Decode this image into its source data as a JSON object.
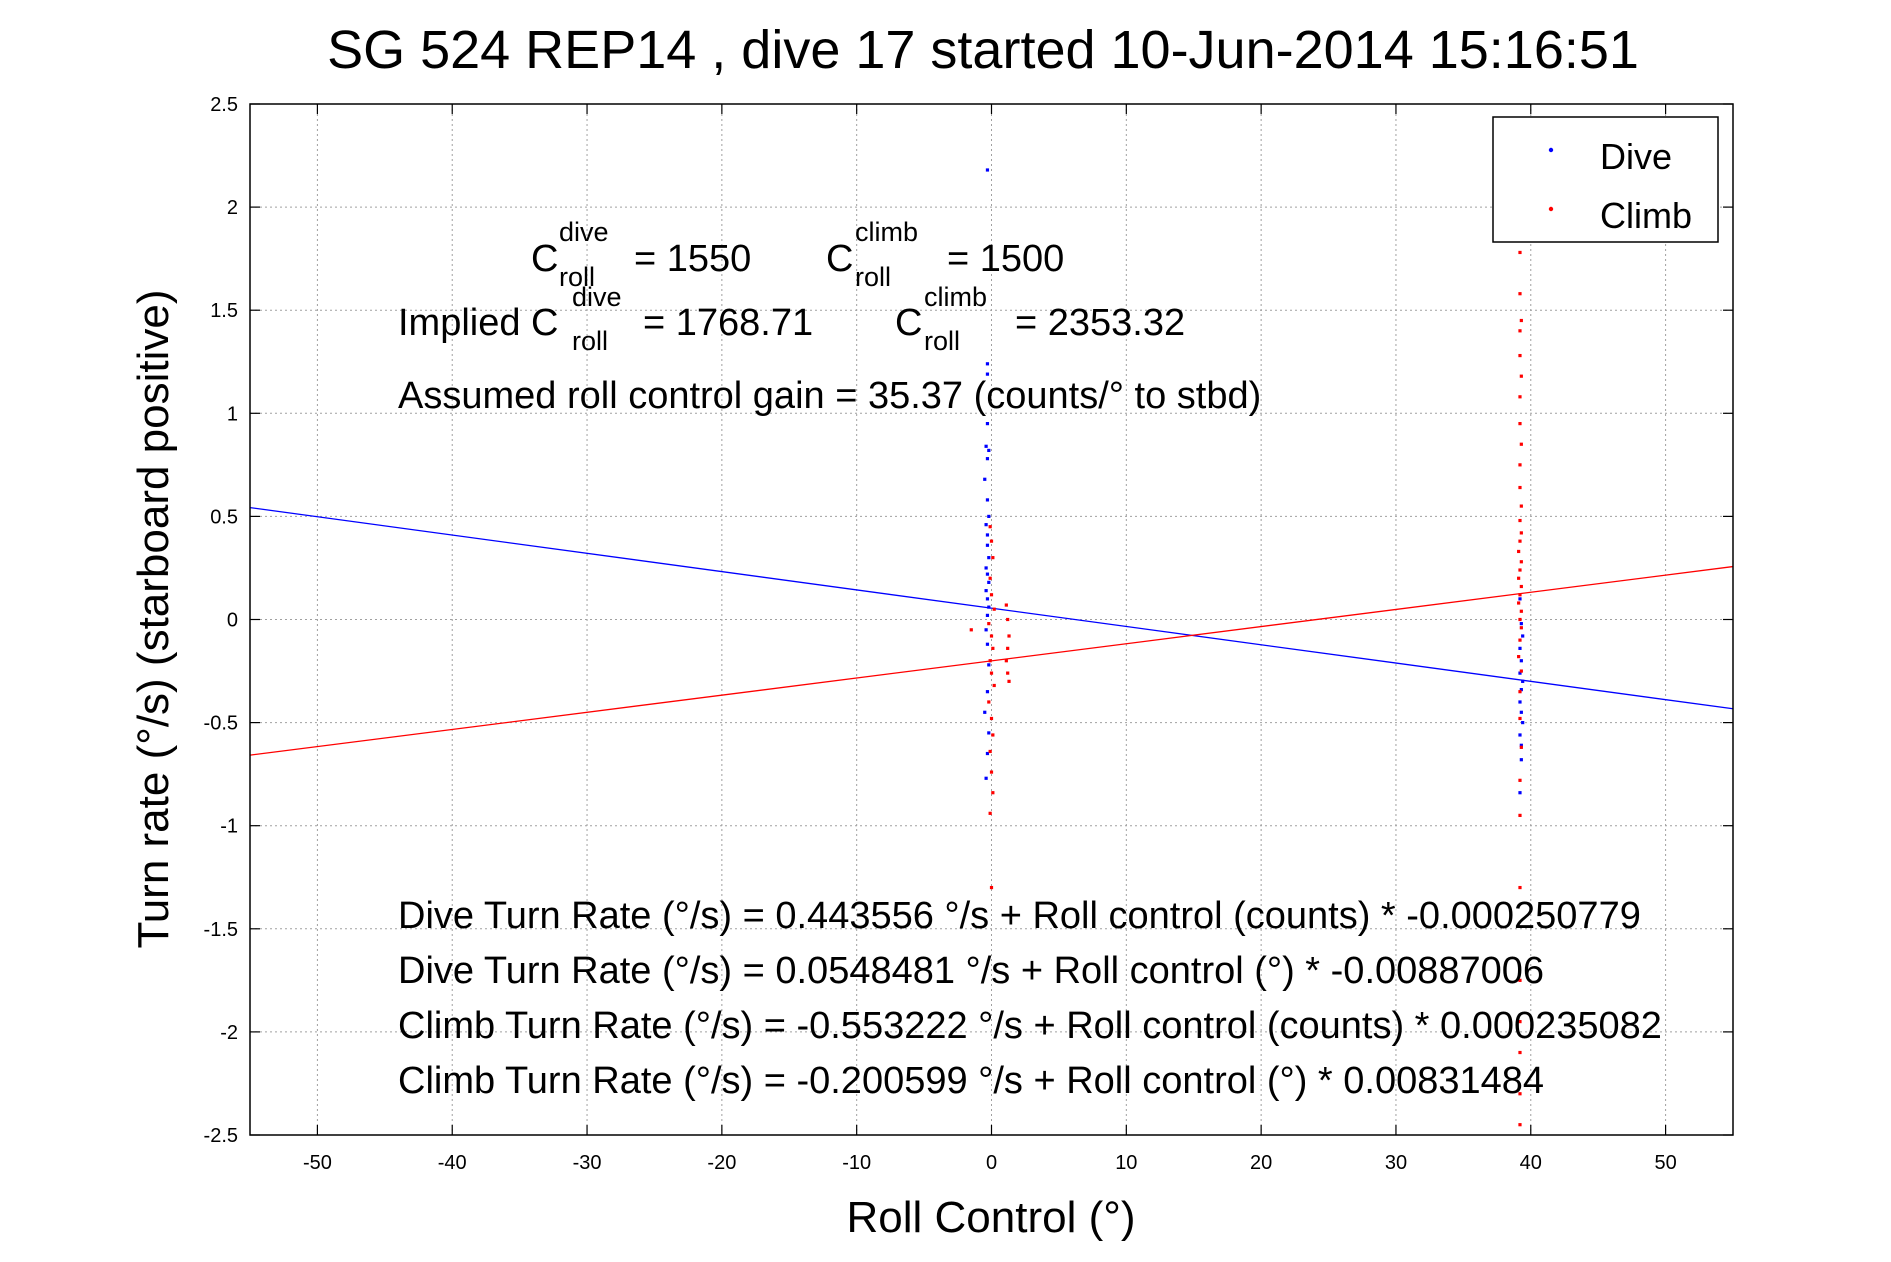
{
  "chart_data": {
    "type": "scatter",
    "title": "SG 524   REP14  , dive 17 started 10-Jun-2014 15:16:51",
    "xlabel": "Roll Control (°)",
    "ylabel": "Turn rate (°/s)  (starboard positive)",
    "xlim": [
      -55,
      55
    ],
    "ylim": [
      -2.5,
      2.5
    ],
    "xticks": [
      -50,
      -40,
      -30,
      -20,
      -10,
      0,
      10,
      20,
      30,
      40,
      50
    ],
    "xtick_labels": [
      "-50",
      "-40",
      "-30",
      "-20",
      "-10",
      "0",
      "10",
      "20",
      "30",
      "40",
      "50"
    ],
    "yticks": [
      -2.5,
      -2,
      -1.5,
      -1,
      -0.5,
      0,
      0.5,
      1,
      1.5,
      2,
      2.5
    ],
    "ytick_labels": [
      "-2.5",
      "-2",
      "-1.5",
      "-1",
      "-0.5",
      "0",
      "0.5",
      "1",
      "1.5",
      "2",
      "2.5"
    ],
    "grid": true,
    "legend_position": "top-right",
    "series": [
      {
        "name": "Dive",
        "color": "#0000ff",
        "marker": "dot",
        "x_clusters": [
          -0.3,
          39.3
        ],
        "points_near_zero": [
          [
            -0.3,
            2.18
          ],
          [
            -0.3,
            1.24
          ],
          [
            -0.3,
            1.19
          ],
          [
            -0.3,
            0.95
          ],
          [
            -0.4,
            0.84
          ],
          [
            -0.2,
            0.82
          ],
          [
            -0.3,
            0.78
          ],
          [
            -0.5,
            0.68
          ],
          [
            -0.3,
            0.58
          ],
          [
            -0.2,
            0.5
          ],
          [
            -0.4,
            0.46
          ],
          [
            -0.3,
            0.41
          ],
          [
            -0.3,
            0.36
          ],
          [
            -0.2,
            0.3
          ],
          [
            -0.4,
            0.25
          ],
          [
            -0.3,
            0.22
          ],
          [
            -0.2,
            0.18
          ],
          [
            -0.4,
            0.14
          ],
          [
            -0.3,
            0.1
          ],
          [
            -0.2,
            0.06
          ],
          [
            -0.3,
            0.02
          ],
          [
            -0.4,
            -0.05
          ],
          [
            -0.3,
            -0.12
          ],
          [
            -0.2,
            -0.22
          ],
          [
            -0.3,
            -0.35
          ],
          [
            -0.5,
            -0.45
          ],
          [
            -0.2,
            -0.55
          ],
          [
            -0.3,
            -0.65
          ],
          [
            -0.4,
            -0.77
          ]
        ],
        "points_near_forty": [
          [
            39.2,
            0.1
          ],
          [
            39.3,
            -0.02
          ],
          [
            39.4,
            -0.08
          ],
          [
            39.2,
            -0.14
          ],
          [
            39.3,
            -0.2
          ],
          [
            39.2,
            -0.26
          ],
          [
            39.4,
            -0.3
          ],
          [
            39.3,
            -0.34
          ],
          [
            39.2,
            -0.4
          ],
          [
            39.3,
            -0.45
          ],
          [
            39.4,
            -0.5
          ],
          [
            39.2,
            -0.56
          ],
          [
            39.3,
            -0.61
          ],
          [
            39.3,
            -0.68
          ],
          [
            39.2,
            -0.84
          ]
        ],
        "fit": {
          "intercept": 0.0548481,
          "slope": -0.00887006
        }
      },
      {
        "name": "Climb",
        "color": "#ff0000",
        "marker": "dot",
        "x_clusters": [
          0.0,
          1.2,
          39.2
        ],
        "points_near_zero": [
          [
            -0.1,
            0.45
          ],
          [
            0.0,
            0.38
          ],
          [
            0.1,
            0.3
          ],
          [
            -0.1,
            0.2
          ],
          [
            0.0,
            0.12
          ],
          [
            0.2,
            0.05
          ],
          [
            -0.2,
            -0.02
          ],
          [
            0.0,
            -0.08
          ],
          [
            0.1,
            -0.14
          ],
          [
            -0.1,
            -0.2
          ],
          [
            0.0,
            -0.26
          ],
          [
            0.2,
            -0.32
          ],
          [
            -0.2,
            -0.4
          ],
          [
            0.0,
            -0.48
          ],
          [
            0.1,
            -0.56
          ],
          [
            -0.1,
            -0.64
          ],
          [
            0.0,
            -0.74
          ],
          [
            0.1,
            -0.84
          ],
          [
            -0.1,
            -0.94
          ],
          [
            0.0,
            -1.3
          ],
          [
            -1.5,
            -0.05
          ],
          [
            1.1,
            0.07
          ],
          [
            1.2,
            0.0
          ],
          [
            1.3,
            -0.08
          ],
          [
            1.2,
            -0.14
          ],
          [
            1.1,
            -0.2
          ],
          [
            1.2,
            -0.26
          ],
          [
            1.3,
            -0.3
          ]
        ],
        "points_near_forty": [
          [
            39.2,
            1.78
          ],
          [
            39.2,
            1.58
          ],
          [
            39.3,
            1.45
          ],
          [
            39.2,
            1.4
          ],
          [
            39.2,
            1.28
          ],
          [
            39.3,
            1.18
          ],
          [
            39.2,
            1.08
          ],
          [
            39.2,
            0.95
          ],
          [
            39.3,
            0.85
          ],
          [
            39.2,
            0.75
          ],
          [
            39.2,
            0.64
          ],
          [
            39.3,
            0.55
          ],
          [
            39.2,
            0.48
          ],
          [
            39.3,
            0.42
          ],
          [
            39.2,
            0.38
          ],
          [
            39.1,
            0.33
          ],
          [
            39.3,
            0.28
          ],
          [
            39.2,
            0.24
          ],
          [
            39.1,
            0.2
          ],
          [
            39.3,
            0.16
          ],
          [
            39.2,
            0.12
          ],
          [
            39.1,
            0.08
          ],
          [
            39.3,
            0.04
          ],
          [
            39.2,
            0.0
          ],
          [
            39.3,
            -0.04
          ],
          [
            39.2,
            -0.1
          ],
          [
            39.1,
            -0.18
          ],
          [
            39.3,
            -0.25
          ],
          [
            39.2,
            -0.35
          ],
          [
            39.2,
            -0.48
          ],
          [
            39.3,
            -0.62
          ],
          [
            39.2,
            -0.78
          ],
          [
            39.2,
            -0.95
          ],
          [
            39.2,
            -1.3
          ],
          [
            39.2,
            -1.75
          ],
          [
            39.2,
            -1.95
          ],
          [
            39.2,
            -2.1
          ],
          [
            39.2,
            -2.3
          ],
          [
            39.2,
            -2.45
          ]
        ],
        "fit": {
          "intercept": -0.200599,
          "slope": 0.00831484
        }
      }
    ],
    "annotations": {
      "c_roll_symbol": "C",
      "c_roll_sub": "roll",
      "c_dive_sup": "dive",
      "c_climb_sup": "climb",
      "c_dive_value": "= 1550",
      "c_climb_value": "= 1500",
      "implied_prefix": "Implied C",
      "implied_dive_value": "= 1768.71",
      "implied_climb_value": "= 2353.32",
      "gain_line": "Assumed roll control gain = 35.37 (counts/° to stbd)",
      "eq_lines": [
        "Dive Turn Rate (°/s) = 0.443556 °/s + Roll control (counts) * -0.000250779",
        "Dive Turn Rate (°/s) = 0.0548481 °/s + Roll control (°) * -0.00887006",
        "Climb Turn Rate (°/s) = -0.553222 °/s + Roll control (counts) * 0.000235082",
        "Climb Turn Rate (°/s) = -0.200599 °/s + Roll control (°) * 0.00831484"
      ]
    }
  }
}
